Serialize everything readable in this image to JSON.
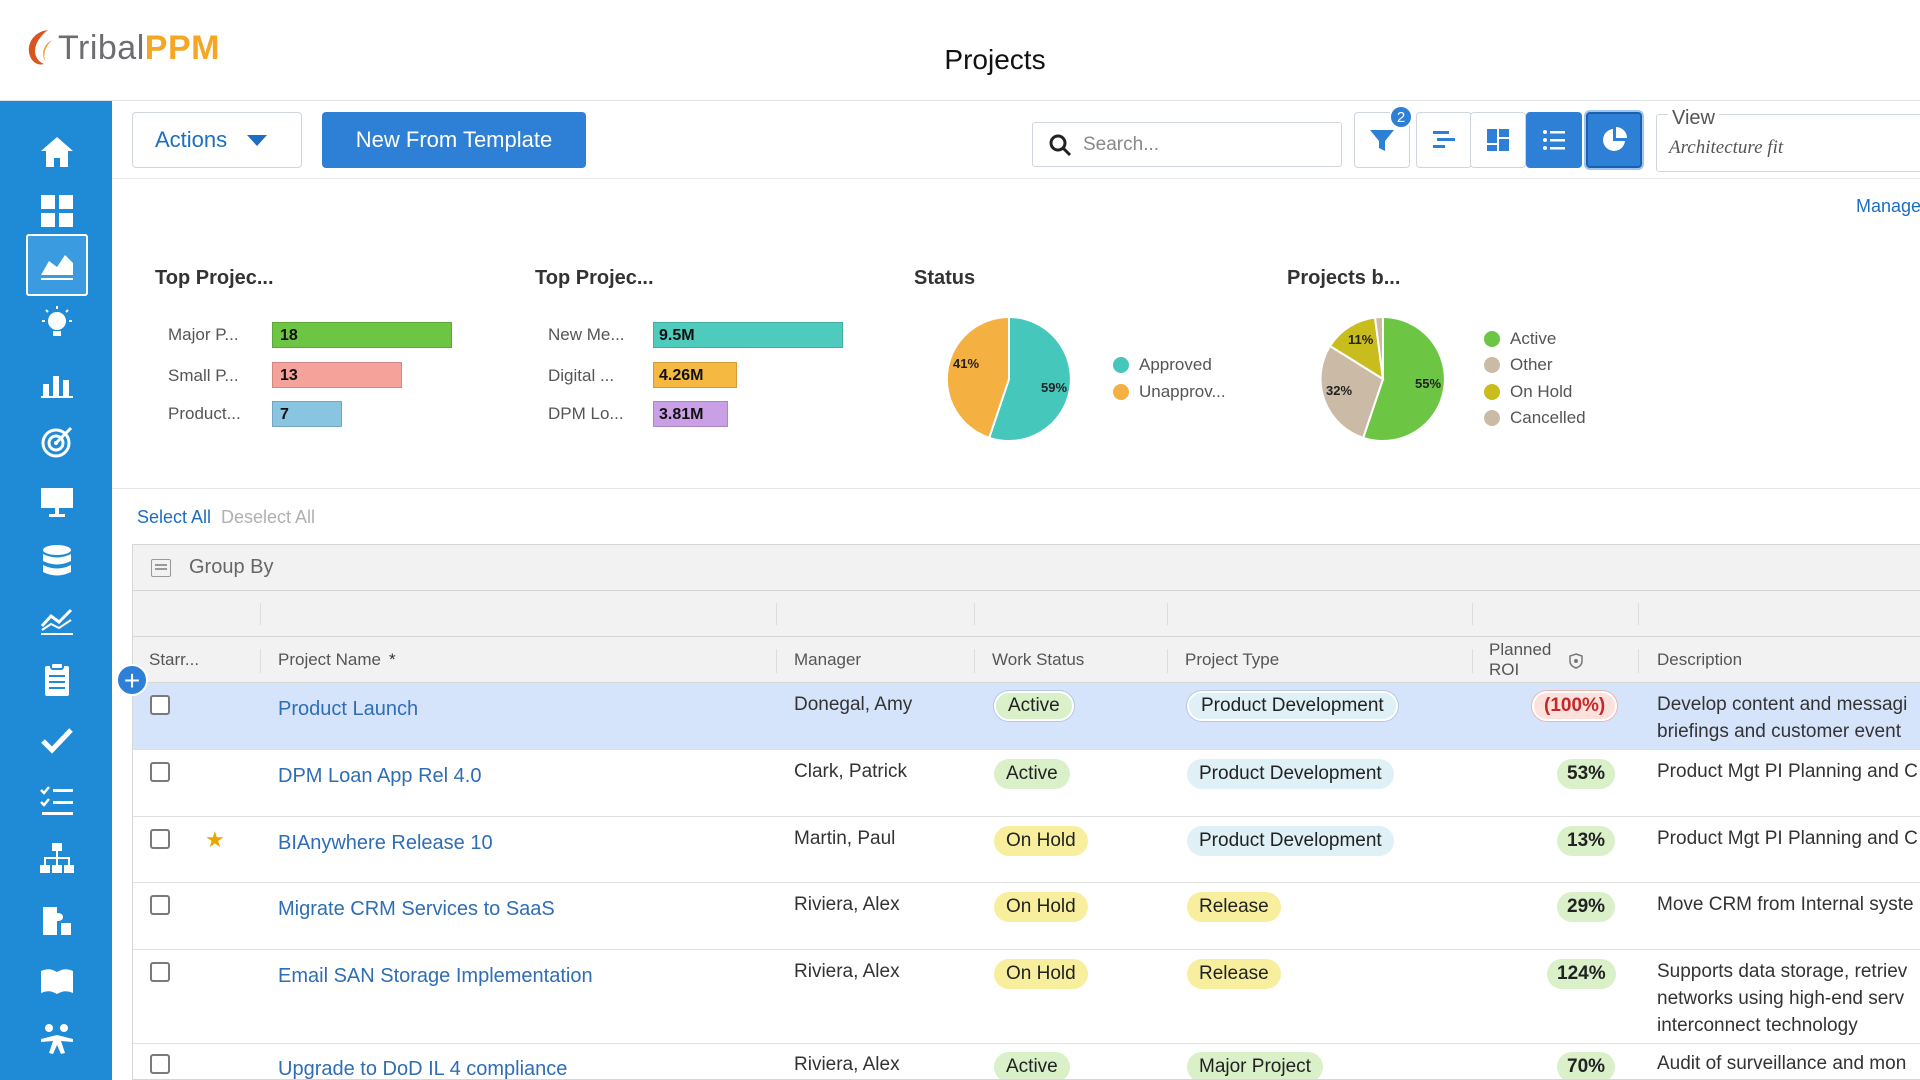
{
  "app": {
    "logo_tribal": "Tribal",
    "logo_ppm": "PPM",
    "page_title": "Projects"
  },
  "sidebar": {
    "items": [
      {
        "icon": "home-icon"
      },
      {
        "icon": "dashboard-grid-icon"
      },
      {
        "icon": "area-chart-icon",
        "active": true
      },
      {
        "icon": "lightbulb-icon"
      },
      {
        "icon": "bar-chart-icon"
      },
      {
        "icon": "target-icon"
      },
      {
        "icon": "presentation-icon"
      },
      {
        "icon": "database-icon"
      },
      {
        "icon": "line-chart-icon"
      },
      {
        "icon": "clipboard-icon"
      },
      {
        "icon": "checkmark-icon"
      },
      {
        "icon": "checklist-icon"
      },
      {
        "icon": "org-chart-icon"
      },
      {
        "icon": "puzzle-icon"
      },
      {
        "icon": "book-icon"
      },
      {
        "icon": "people-icon"
      }
    ]
  },
  "toolbar": {
    "actions_label": "Actions",
    "new_template_label": "New From Template",
    "search_placeholder": "Search...",
    "filter_count": "2",
    "view_label": "View",
    "view_value": "Architecture fit"
  },
  "manage_label": "Manage",
  "charts": [
    {
      "title": "Top Projec...",
      "type": "bar",
      "categories": [
        "Major P...",
        "Small P...",
        "Product..."
      ],
      "values": [
        "18",
        "13",
        "7"
      ],
      "colors": [
        "#6cc644",
        "#f5a29b",
        "#89c4e1"
      ]
    },
    {
      "title": "Top Projec...",
      "type": "bar",
      "categories": [
        "New Me...",
        "Digital ...",
        "DPM Lo..."
      ],
      "values": [
        "9.5M",
        "4.26M",
        "3.81M"
      ],
      "colors": [
        "#4ecbbd",
        "#f5b942",
        "#c9a0e6"
      ]
    },
    {
      "title": "Status",
      "type": "pie",
      "slices": [
        {
          "label": "Approved",
          "pct": "59%",
          "color": "#45c7bc"
        },
        {
          "label": "Unapprov...",
          "pct": "41%",
          "color": "#f5b042"
        }
      ]
    },
    {
      "title": "Projects b...",
      "type": "pie",
      "slices": [
        {
          "label": "Active",
          "pct": "55%",
          "color": "#6cc644"
        },
        {
          "label": "Other",
          "pct": "32%",
          "color": "#cbbba6"
        },
        {
          "label": "On Hold",
          "pct": "11%",
          "color": "#c9bd1e"
        },
        {
          "label": "Cancelled",
          "pct": "",
          "color": "#cbbba6"
        }
      ]
    }
  ],
  "chart_data": [
    {
      "type": "bar",
      "title": "Top Projec...",
      "categories": [
        "Major P...",
        "Small P...",
        "Product..."
      ],
      "values": [
        18,
        13,
        7
      ]
    },
    {
      "type": "bar",
      "title": "Top Projec...",
      "categories": [
        "New Me...",
        "Digital ...",
        "DPM Lo..."
      ],
      "values": [
        9500000,
        4260000,
        3810000
      ]
    },
    {
      "type": "pie",
      "title": "Status",
      "categories": [
        "Approved",
        "Unapprov..."
      ],
      "values": [
        59,
        41
      ]
    },
    {
      "type": "pie",
      "title": "Projects b...",
      "categories": [
        "Active",
        "Other",
        "On Hold",
        "Cancelled"
      ],
      "values": [
        55,
        32,
        11,
        2
      ]
    }
  ],
  "selection": {
    "select_all": "Select All",
    "deselect_all": "Deselect All"
  },
  "grid": {
    "group_by": "Group By",
    "columns": {
      "starred": "Starr...",
      "project_name": "Project Name",
      "required_mark": "*",
      "manager": "Manager",
      "work_status": "Work Status",
      "project_type": "Project Type",
      "planned_roi_1": "Planned",
      "planned_roi_2": "ROI",
      "description": "Description"
    },
    "rows": [
      {
        "name": "Product Launch",
        "manager": "Donegal, Amy",
        "status": "Active",
        "type": "Product Development",
        "roi": "(100%)",
        "desc": [
          "Develop content and messagi",
          "briefings and customer event"
        ]
      },
      {
        "name": "DPM Loan App Rel 4.0",
        "manager": "Clark, Patrick",
        "status": "Active",
        "type": "Product Development",
        "roi": "53%",
        "desc": [
          "Product Mgt PI Planning and C"
        ]
      },
      {
        "name": "BIAnywhere Release 10",
        "manager": "Martin, Paul",
        "status": "On Hold",
        "type": "Product Development",
        "roi": "13%",
        "desc": [
          "Product Mgt PI Planning and C"
        ]
      },
      {
        "name": "Migrate CRM Services to SaaS",
        "manager": "Riviera, Alex",
        "status": "On Hold",
        "type": "Release",
        "roi": "29%",
        "desc": [
          "Move CRM from Internal syste"
        ]
      },
      {
        "name": "Email SAN Storage Implementation",
        "manager": "Riviera, Alex",
        "status": "On Hold",
        "type": "Release",
        "roi": "124%",
        "desc": [
          "Supports data storage, retriev",
          "networks using high-end serv",
          "interconnect technology"
        ]
      },
      {
        "name": "Upgrade to DoD IL 4 compliance",
        "manager": "Riviera, Alex",
        "status": "Active",
        "type": "Major Project",
        "roi": "70%",
        "desc": [
          "Audit of surveillance and mon"
        ]
      }
    ]
  }
}
